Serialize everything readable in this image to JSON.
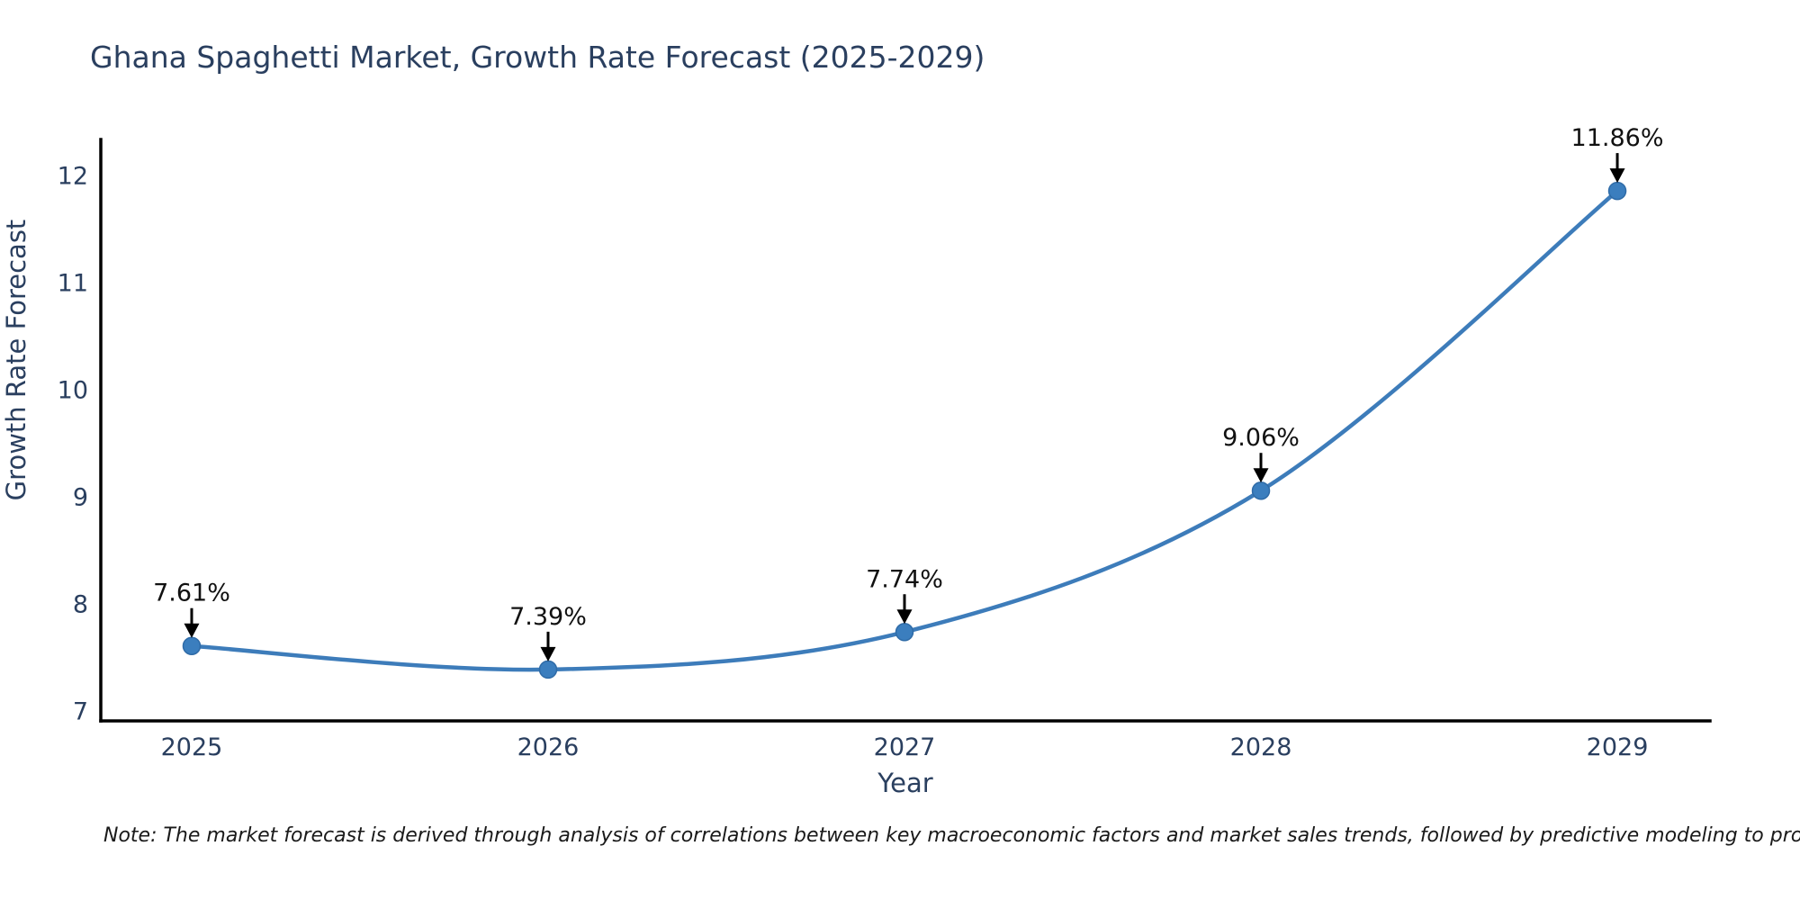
{
  "title": "Ghana Spaghetti Market, Growth Rate Forecast (2025-2029)",
  "note": "Note: The market forecast is derived through analysis of correlations between key macroeconomic factors and market sales trends, followed by predictive modeling to project future sales",
  "chart_data": {
    "type": "line",
    "title": "Ghana Spaghetti Market, Growth Rate Forecast (2025-2029)",
    "xlabel": "Year",
    "ylabel": "Growth Rate Forecast",
    "x": [
      2025,
      2026,
      2027,
      2028,
      2029
    ],
    "xticklabels": [
      "2025",
      "2026",
      "2027",
      "2028",
      "2029"
    ],
    "series": [
      {
        "name": "Growth Rate Forecast",
        "values": [
          7.61,
          7.39,
          7.74,
          9.06,
          11.86
        ]
      }
    ],
    "point_labels": [
      "7.61%",
      "7.39%",
      "7.74%",
      "9.06%",
      "11.86%"
    ],
    "yticks": [
      7,
      8,
      9,
      10,
      11,
      12
    ],
    "ylim": [
      6.91,
      12.34
    ],
    "xlim": [
      2024.745,
      2029.26
    ],
    "grid": false,
    "legend": "none",
    "line_shape": "spline",
    "annotation_style": "value label above point with downward black arrow",
    "colors": {
      "line": "#3d7cba",
      "marker_fill": "#3b7ebe",
      "marker_edge": "#2f6ba7",
      "axis_line": "#000000",
      "tick_text": "#2a3f5f",
      "axis_title_text": "#2a3f5f",
      "title_text": "#2a3f5f",
      "annotation_text": "#111111",
      "annotation_arrow": "#000000",
      "background": "#ffffff"
    }
  }
}
